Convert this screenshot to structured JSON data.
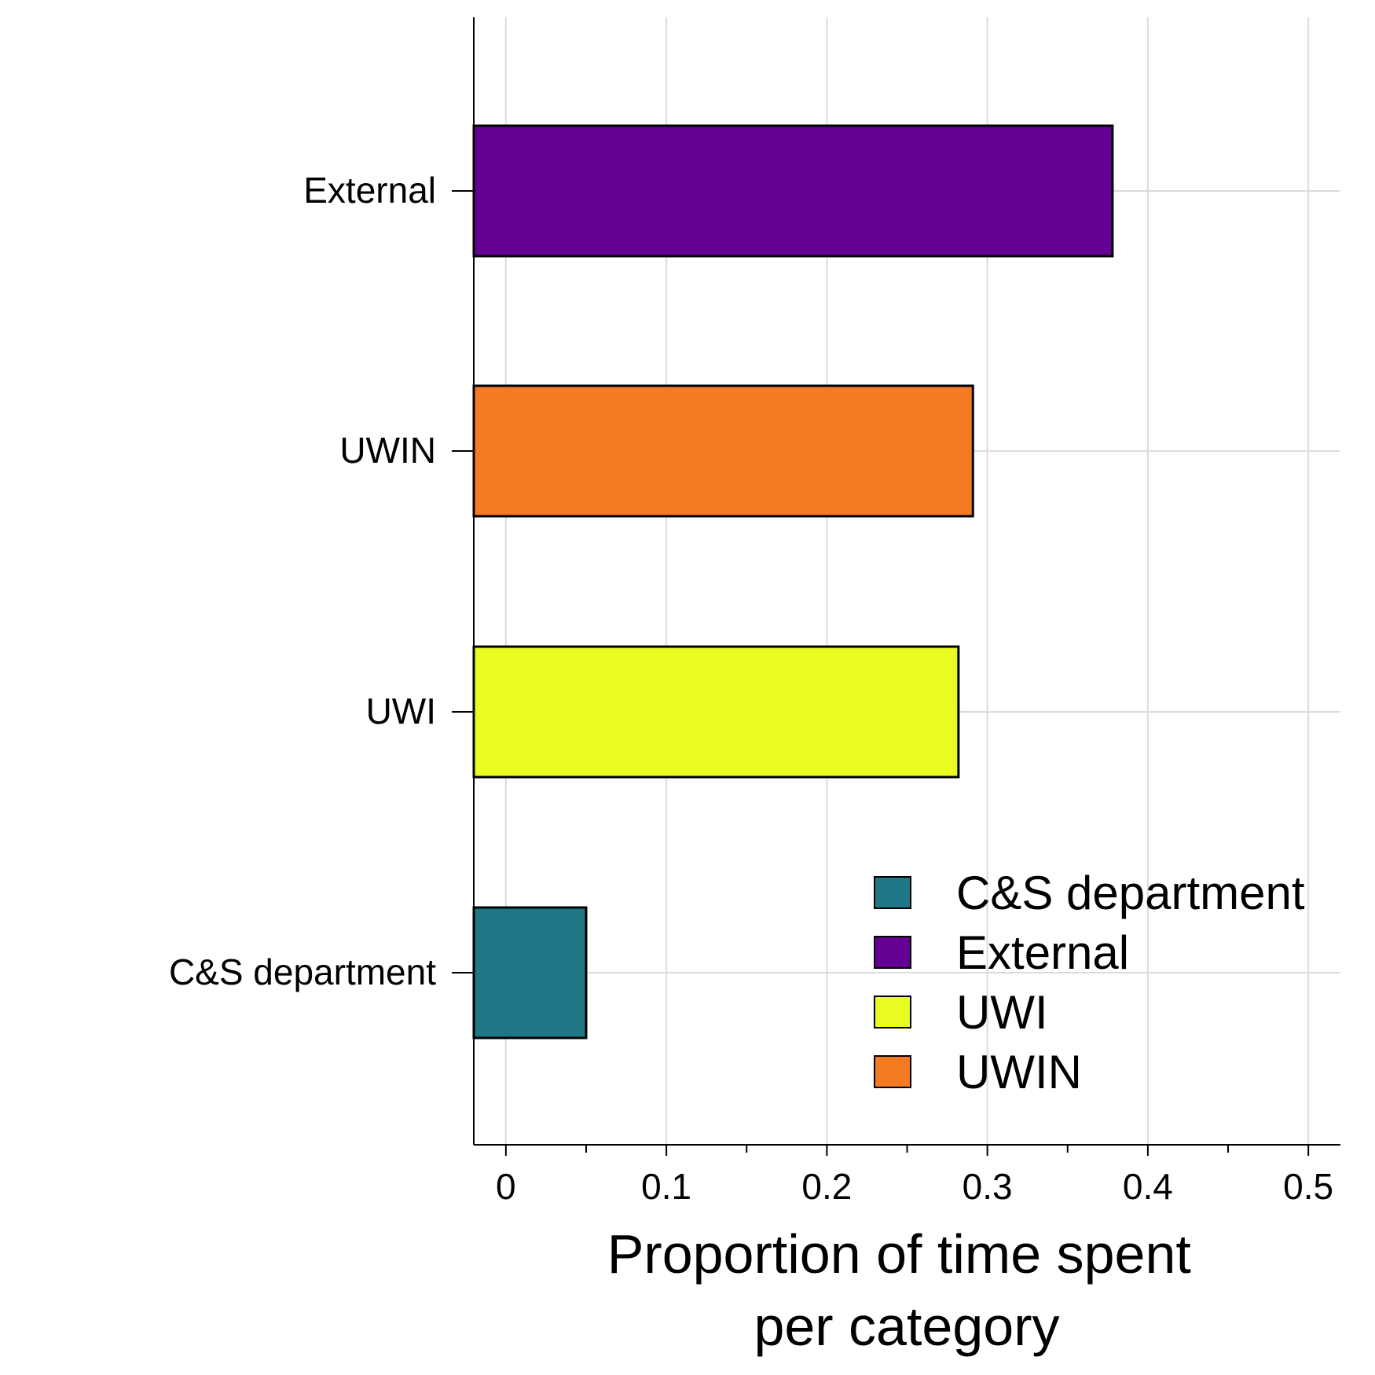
{
  "chart_data": {
    "type": "bar",
    "orientation": "horizontal",
    "categories": [
      "External",
      "UWIN",
      "UWI",
      "C&S department"
    ],
    "values": [
      0.378,
      0.291,
      0.282,
      0.05
    ],
    "colors": [
      "#660094",
      "#f47b21",
      "#e9fb21",
      "#1d7784"
    ],
    "xlabel": "Proportion of time spent per category",
    "xlabel_lines": [
      "Proportion of time spent",
      "per category"
    ],
    "ylabel": "",
    "xlim": [
      -0.02,
      0.52
    ],
    "xticks": [
      0,
      0.1,
      0.2,
      0.3,
      0.4,
      0.5
    ],
    "xtick_labels": [
      "0",
      "0.1",
      "0.2",
      "0.3",
      "0.4",
      "0.5"
    ],
    "grid": true,
    "legend": {
      "position": "bottom-right",
      "entries": [
        {
          "label": "C&S department",
          "color": "#1d7784"
        },
        {
          "label": "External",
          "color": "#660094"
        },
        {
          "label": "UWI",
          "color": "#e9fb21"
        },
        {
          "label": "UWIN",
          "color": "#f47b21"
        }
      ]
    }
  }
}
